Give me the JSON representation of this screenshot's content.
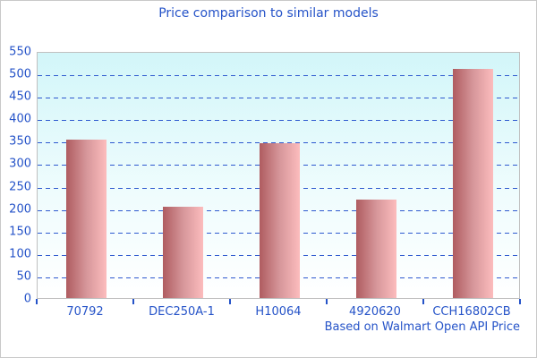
{
  "chart_data": {
    "type": "bar",
    "title": "Price comparison to similar models",
    "caption": "Based on Walmart Open API Price",
    "categories": [
      "70792",
      "DEC250A-1",
      "H10064",
      "4920620",
      "CCH16802CB"
    ],
    "values": [
      352,
      203,
      345,
      220,
      510
    ],
    "xlabel": "",
    "ylabel": "",
    "ylim": [
      0,
      550
    ],
    "ytick_step": 50,
    "grid": "horizontal-dashed",
    "legend_position": "none",
    "colors": {
      "title_text": "#2553c8",
      "axis_text": "#2553c8",
      "gridline": "#2e59cf",
      "tick": "#2553c8",
      "bar_gradient_left": "#af5c60",
      "bar_gradient_right": "#fcbcbd",
      "plot_bg_top": "#d2f6f9",
      "plot_bg_bottom": "#ffffff",
      "plot_border": "#c0c0c0",
      "window_border": "#c9c9c9",
      "page_background": "#ffffff"
    }
  }
}
